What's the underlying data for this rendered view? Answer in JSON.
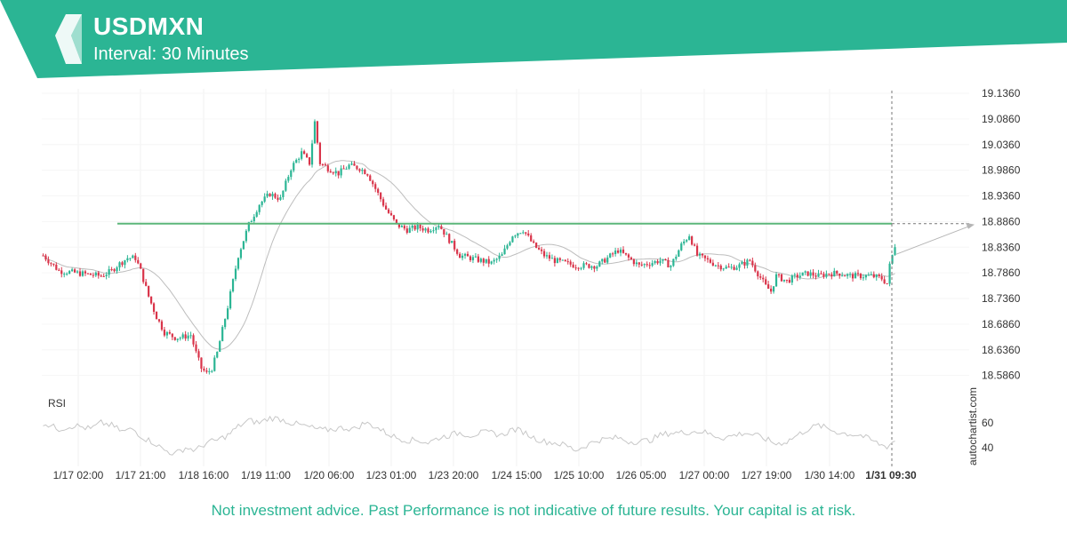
{
  "header": {
    "symbol": "USDMXN",
    "interval": "Interval: 30 Minutes",
    "brand_color": "#2bb594",
    "logo_icon": "autochartist-logo-icon"
  },
  "disclaimer": "Not investment advice. Past Performance is not indicative of future results. Your capital is at risk.",
  "watermark": "autochartist.com",
  "chart_data": {
    "type": "candlestick",
    "ylim": [
      18.556,
      19.136
    ],
    "y_ticks": [
      "19.1360",
      "19.0860",
      "19.0360",
      "18.9860",
      "18.9360",
      "18.8860",
      "18.8360",
      "18.7860",
      "18.7360",
      "18.6860",
      "18.6360",
      "18.5860"
    ],
    "x_ticks": [
      "1/17 02:00",
      "1/17 21:00",
      "1/18 16:00",
      "1/19 11:00",
      "1/20 06:00",
      "1/23 01:00",
      "1/23 20:00",
      "1/24 15:00",
      "1/25 10:00",
      "1/26 05:00",
      "1/27 00:00",
      "1/27 19:00",
      "1/30 14:00",
      "1/31 09:30"
    ],
    "current_time_label": "1/31 09:30",
    "resistance_level": 18.882,
    "price_path": [
      [
        0,
        18.82
      ],
      [
        6,
        18.79
      ],
      [
        14,
        18.785
      ],
      [
        22,
        18.78
      ],
      [
        26,
        18.79
      ],
      [
        28,
        18.8
      ],
      [
        32,
        18.815
      ],
      [
        35,
        18.815
      ],
      [
        37,
        18.79
      ],
      [
        40,
        18.74
      ],
      [
        43,
        18.7
      ],
      [
        46,
        18.67
      ],
      [
        50,
        18.66
      ],
      [
        52,
        18.66
      ],
      [
        56,
        18.665
      ],
      [
        58,
        18.63
      ],
      [
        60,
        18.6
      ],
      [
        62,
        18.59
      ],
      [
        64,
        18.6
      ],
      [
        66,
        18.63
      ],
      [
        70,
        18.72
      ],
      [
        74,
        18.82
      ],
      [
        78,
        18.88
      ],
      [
        82,
        18.92
      ],
      [
        86,
        18.94
      ],
      [
        90,
        18.93
      ],
      [
        94,
        18.99
      ],
      [
        98,
        19.02
      ],
      [
        101,
        19.0
      ],
      [
        103,
        19.08
      ],
      [
        105,
        19.0
      ],
      [
        108,
        18.99
      ],
      [
        112,
        18.98
      ],
      [
        116,
        18.995
      ],
      [
        120,
        18.99
      ],
      [
        123,
        18.98
      ],
      [
        126,
        18.95
      ],
      [
        130,
        18.91
      ],
      [
        134,
        18.88
      ],
      [
        138,
        18.87
      ],
      [
        142,
        18.875
      ],
      [
        146,
        18.87
      ],
      [
        150,
        18.88
      ],
      [
        154,
        18.85
      ],
      [
        158,
        18.82
      ],
      [
        162,
        18.815
      ],
      [
        166,
        18.81
      ],
      [
        170,
        18.805
      ],
      [
        174,
        18.82
      ],
      [
        178,
        18.86
      ],
      [
        182,
        18.87
      ],
      [
        186,
        18.84
      ],
      [
        190,
        18.82
      ],
      [
        194,
        18.81
      ],
      [
        198,
        18.805
      ],
      [
        202,
        18.8
      ],
      [
        206,
        18.8
      ],
      [
        210,
        18.8
      ],
      [
        214,
        18.815
      ],
      [
        218,
        18.83
      ],
      [
        222,
        18.815
      ],
      [
        226,
        18.8
      ],
      [
        230,
        18.805
      ],
      [
        234,
        18.81
      ],
      [
        238,
        18.8
      ],
      [
        240,
        18.82
      ],
      [
        242,
        18.84
      ],
      [
        245,
        18.86
      ],
      [
        248,
        18.82
      ],
      [
        252,
        18.81
      ],
      [
        256,
        18.8
      ],
      [
        260,
        18.795
      ],
      [
        264,
        18.8
      ],
      [
        268,
        18.81
      ],
      [
        271,
        18.785
      ],
      [
        274,
        18.76
      ],
      [
        276,
        18.75
      ],
      [
        278,
        18.78
      ],
      [
        282,
        18.77
      ],
      [
        286,
        18.78
      ],
      [
        290,
        18.785
      ],
      [
        294,
        18.78
      ],
      [
        298,
        18.785
      ],
      [
        302,
        18.785
      ],
      [
        306,
        18.78
      ],
      [
        310,
        18.78
      ],
      [
        314,
        18.78
      ],
      [
        318,
        18.775
      ],
      [
        320,
        18.765
      ],
      [
        321,
        18.8
      ],
      [
        323,
        18.84
      ]
    ],
    "rsi": {
      "label": "RSI",
      "ticks": [
        60,
        40
      ],
      "ylim": [
        30,
        75
      ],
      "values_by_index": [
        [
          0,
          60
        ],
        [
          6,
          55
        ],
        [
          12,
          58
        ],
        [
          18,
          55
        ],
        [
          22,
          60
        ],
        [
          26,
          58
        ],
        [
          30,
          53
        ],
        [
          34,
          55
        ],
        [
          38,
          48
        ],
        [
          42,
          44
        ],
        [
          46,
          38
        ],
        [
          50,
          35
        ],
        [
          54,
          40
        ],
        [
          58,
          38
        ],
        [
          62,
          44
        ],
        [
          66,
          46
        ],
        [
          70,
          50
        ],
        [
          74,
          57
        ],
        [
          78,
          62
        ],
        [
          82,
          60
        ],
        [
          86,
          64
        ],
        [
          90,
          63
        ],
        [
          94,
          60
        ],
        [
          98,
          58
        ],
        [
          102,
          56
        ],
        [
          106,
          54
        ],
        [
          110,
          55
        ],
        [
          114,
          56
        ],
        [
          118,
          55
        ],
        [
          122,
          60
        ],
        [
          126,
          57
        ],
        [
          130,
          52
        ],
        [
          134,
          48
        ],
        [
          138,
          46
        ],
        [
          142,
          46
        ],
        [
          146,
          44
        ],
        [
          150,
          48
        ],
        [
          154,
          50
        ],
        [
          158,
          52
        ],
        [
          162,
          50
        ],
        [
          166,
          52
        ],
        [
          170,
          52
        ],
        [
          174,
          50
        ],
        [
          178,
          55
        ],
        [
          182,
          53
        ],
        [
          186,
          48
        ],
        [
          190,
          45
        ],
        [
          194,
          44
        ],
        [
          198,
          42
        ],
        [
          202,
          38
        ],
        [
          206,
          42
        ],
        [
          210,
          46
        ],
        [
          214,
          47
        ],
        [
          218,
          48
        ],
        [
          222,
          45
        ],
        [
          226,
          45
        ],
        [
          230,
          46
        ],
        [
          234,
          50
        ],
        [
          238,
          52
        ],
        [
          242,
          52
        ],
        [
          246,
          53
        ],
        [
          250,
          53
        ],
        [
          254,
          50
        ],
        [
          258,
          48
        ],
        [
          262,
          50
        ],
        [
          266,
          52
        ],
        [
          270,
          50
        ],
        [
          274,
          47
        ],
        [
          278,
          43
        ],
        [
          282,
          45
        ],
        [
          286,
          50
        ],
        [
          290,
          55
        ],
        [
          294,
          58
        ],
        [
          298,
          55
        ],
        [
          302,
          52
        ],
        [
          306,
          51
        ],
        [
          310,
          50
        ],
        [
          314,
          46
        ],
        [
          318,
          42
        ],
        [
          320,
          41
        ],
        [
          323,
          46
        ]
      ]
    },
    "colors": {
      "up": "#2bb594",
      "down": "#d9344a",
      "resistance": "#5cb67a",
      "moving_average": "#bdbdbd",
      "rsi_line": "#c7c7c7",
      "forecast_arrow": "#b5b5b5"
    }
  }
}
